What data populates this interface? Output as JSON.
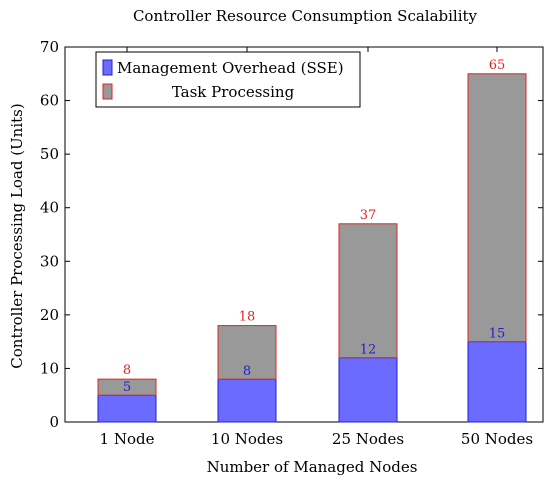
{
  "chart_data": {
    "type": "bar",
    "stacked": true,
    "title": "Controller Resource Consumption Scalability",
    "xlabel": "Number of Managed Nodes",
    "ylabel": "Controller Processing Load (Units)",
    "ylim": [
      0,
      70
    ],
    "yticks": [
      0,
      10,
      20,
      30,
      40,
      50,
      60,
      70
    ],
    "grid": false,
    "legend_position": "top-left",
    "categories": [
      "1 Node",
      "10 Nodes",
      "25 Nodes",
      "50 Nodes"
    ],
    "series": [
      {
        "name": "Management Overhead (SSE)",
        "values": [
          5,
          8,
          12,
          15
        ],
        "fill": "#6b6bff",
        "stroke": "#1f1fd6",
        "label_color": "#1f1fd6"
      },
      {
        "name": "Task Processing",
        "values": [
          3,
          10,
          25,
          50
        ],
        "fill": "#999999",
        "stroke": "#e02424"
      }
    ],
    "totals": [
      8,
      18,
      37,
      65
    ],
    "total_label_color": "#e02424"
  }
}
